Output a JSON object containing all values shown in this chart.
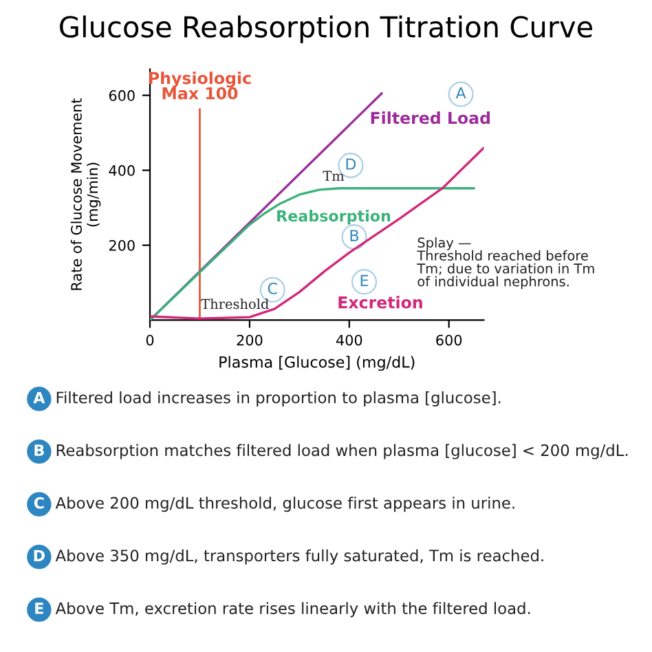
{
  "chart_data": {
    "type": "line",
    "title": "Glucose Reabsorption Titration Curve",
    "xlabel": "Plasma [Glucose] (mg/dL)",
    "ylabel": "Rate of Glucose Movement\n(mg/min)",
    "xlim": [
      0,
      670
    ],
    "ylim": [
      0,
      670
    ],
    "xticks": [
      0,
      200,
      400,
      600
    ],
    "yticks": [
      200,
      400,
      600
    ],
    "grid": false,
    "legend": false,
    "marker": "none",
    "line_style": "solid",
    "series": [
      {
        "color": "#9b2d9b",
        "x": [
          0,
          465
        ],
        "values": [
          0,
          605
        ]
      },
      {
        "color": "#3bb27a",
        "x": [
          0,
          100,
          200,
          230,
          260,
          300,
          340,
          380,
          650
        ],
        "values": [
          0,
          128,
          255,
          285,
          310,
          335,
          348,
          352,
          352
        ]
      },
      {
        "color": "#d1287a",
        "x": [
          0,
          100,
          200,
          250,
          300,
          350,
          400,
          450,
          500,
          587,
          670
        ],
        "values": [
          10,
          4,
          8,
          30,
          75,
          130,
          180,
          225,
          270,
          352,
          460
        ]
      }
    ],
    "ref_lines": [
      {
        "axis": "x",
        "value": 100,
        "label": "Physiologic\nMax 100",
        "color": "#e8563a"
      }
    ],
    "annotations": [
      "Filtered Load",
      "Reabsorption",
      "Excretion",
      "Threshold",
      "Tm",
      "Splay —\nThreshold reached before\nTm; due to variation in Tm\nof individual nephrons.",
      {
        "text": "A",
        "x": 624,
        "y": 603
      },
      {
        "text": "B",
        "x": 410,
        "y": 222
      },
      {
        "text": "C",
        "x": 246,
        "y": 81
      },
      {
        "text": "D",
        "x": 403,
        "y": 413
      },
      {
        "text": "E",
        "x": 430,
        "y": 102
      },
      "A Filtered load increases in proportion to plasma [glucose].",
      "B Reabsorption matches filtered load when plasma [glucose] < 200 mg/dL.",
      "C Above 200 mg/dL threshold, glucose first appears in urine.",
      "D Above 350 mg/dL, transporters fully saturated, Tm is reached.",
      "E Above Tm, excretion rate rises linearly with the filtered load."
    ]
  }
}
